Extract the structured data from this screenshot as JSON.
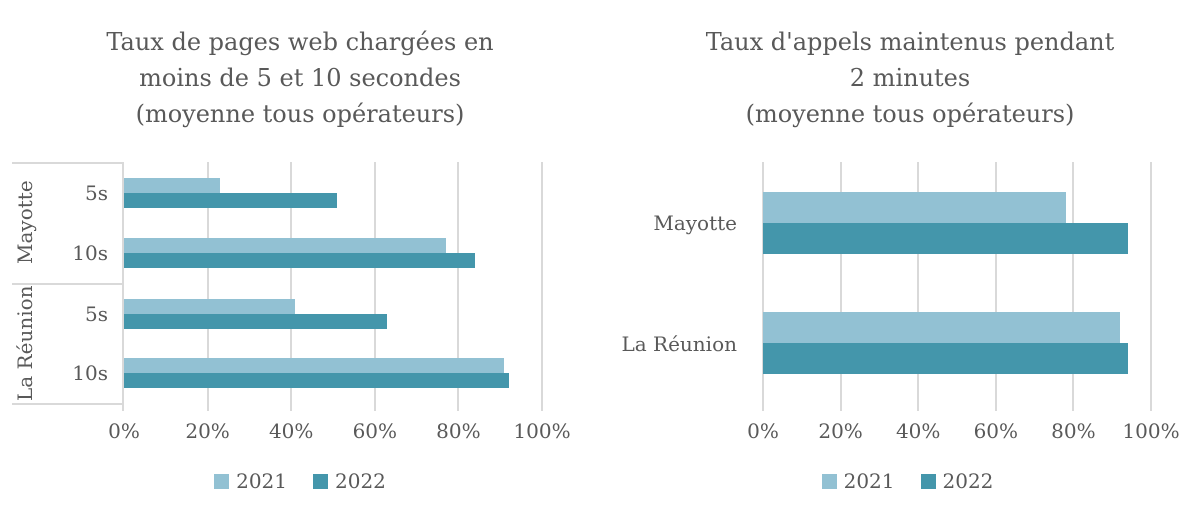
{
  "colors": {
    "series_2021": "#92c1d3",
    "series_2022": "#4496ab",
    "text": "#595959",
    "grid": "#d9d9d9"
  },
  "chart_data": [
    {
      "type": "bar",
      "orientation": "horizontal",
      "title": "Taux de pages web chargées en moins de 5 et 10 secondes (moyenne tous opérateurs)",
      "title_lines": [
        "Taux de pages web chargées en",
        "moins de 5 et 10 secondes",
        "(moyenne tous opérateurs)"
      ],
      "groups": [
        "Mayotte",
        "La Réunion"
      ],
      "categories": [
        {
          "group": "Mayotte",
          "label": "5s"
        },
        {
          "group": "Mayotte",
          "label": "10s"
        },
        {
          "group": "La Réunion",
          "label": "5s"
        },
        {
          "group": "La Réunion",
          "label": "10s"
        }
      ],
      "series": [
        {
          "name": "2021",
          "color": "#92c1d3",
          "values": [
            23,
            77,
            41,
            91
          ]
        },
        {
          "name": "2022",
          "color": "#4496ab",
          "values": [
            51,
            84,
            63,
            92
          ]
        }
      ],
      "xlim": [
        0,
        100
      ],
      "x_ticks": [
        "0%",
        "20%",
        "40%",
        "60%",
        "80%",
        "100%"
      ],
      "grid": true,
      "legend_position": "bottom"
    },
    {
      "type": "bar",
      "orientation": "horizontal",
      "title": "Taux d'appels maintenus pendant 2 minutes (moyenne tous opérateurs)",
      "title_lines": [
        "Taux d'appels maintenus pendant",
        "2 minutes",
        "(moyenne tous opérateurs)"
      ],
      "categories": [
        "Mayotte",
        "La Réunion"
      ],
      "series": [
        {
          "name": "2021",
          "color": "#92c1d3",
          "values": [
            78,
            92
          ]
        },
        {
          "name": "2022",
          "color": "#4496ab",
          "values": [
            94,
            94
          ]
        }
      ],
      "xlim": [
        0,
        100
      ],
      "x_ticks": [
        "0%",
        "20%",
        "40%",
        "60%",
        "80%",
        "100%"
      ],
      "grid": true,
      "legend_position": "bottom"
    }
  ]
}
